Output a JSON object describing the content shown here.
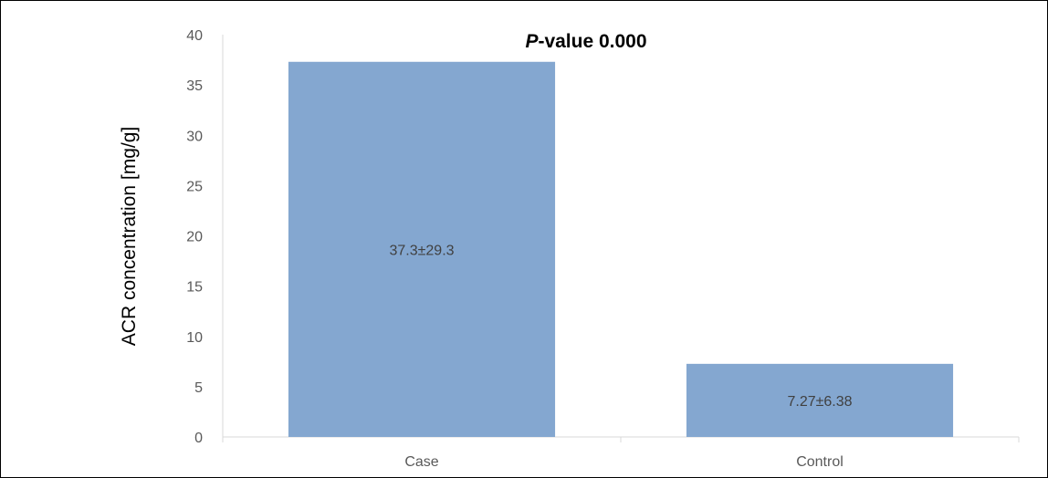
{
  "chart_data": {
    "type": "bar",
    "title_prefix": "P",
    "title_rest": "-value 0.000",
    "ylabel": "ACR concentration [mg/g]",
    "xlabel": "",
    "categories": [
      "Case",
      "Control"
    ],
    "values": [
      37.3,
      7.27
    ],
    "data_labels": [
      "37.3±29.3",
      "7.27±6.38"
    ],
    "ylim": [
      0,
      40
    ],
    "yticks": [
      0,
      5,
      10,
      15,
      20,
      25,
      30,
      35,
      40
    ],
    "grid": false,
    "legend": "none",
    "bar_color": "#84A7D0"
  }
}
